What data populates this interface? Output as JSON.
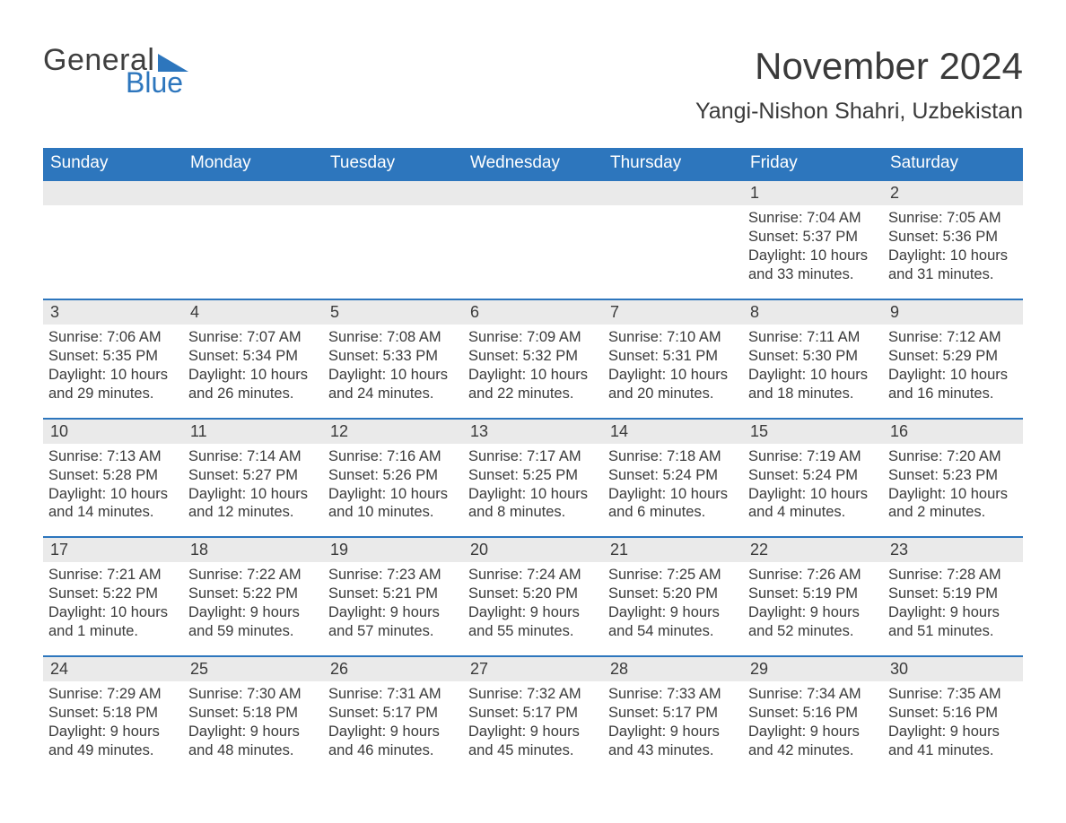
{
  "branding": {
    "word1": "General",
    "word2": "Blue",
    "logo_triangle_color": "#2d76bd",
    "text_color": "#3f3f3f",
    "blue_color": "#2d76bd"
  },
  "title": {
    "month": "November 2024",
    "location": "Yangi-Nishon Shahri, Uzbekistan"
  },
  "colors": {
    "header_bg": "#2d76bd",
    "header_text": "#ffffff",
    "daynum_bg": "#eaeaea",
    "body_text": "#3a3a3a",
    "page_bg": "#ffffff",
    "week_divider": "#2d76bd"
  },
  "typography": {
    "month_fontsize": 42,
    "location_fontsize": 25,
    "header_fontsize": 19,
    "daynum_fontsize": 18,
    "body_fontsize": 16.5
  },
  "day_headers": [
    "Sunday",
    "Monday",
    "Tuesday",
    "Wednesday",
    "Thursday",
    "Friday",
    "Saturday"
  ],
  "weeks": [
    [
      null,
      null,
      null,
      null,
      null,
      {
        "n": "1",
        "sunrise": "Sunrise: 7:04 AM",
        "sunset": "Sunset: 5:37 PM",
        "day": "Daylight: 10 hours and 33 minutes."
      },
      {
        "n": "2",
        "sunrise": "Sunrise: 7:05 AM",
        "sunset": "Sunset: 5:36 PM",
        "day": "Daylight: 10 hours and 31 minutes."
      }
    ],
    [
      {
        "n": "3",
        "sunrise": "Sunrise: 7:06 AM",
        "sunset": "Sunset: 5:35 PM",
        "day": "Daylight: 10 hours and 29 minutes."
      },
      {
        "n": "4",
        "sunrise": "Sunrise: 7:07 AM",
        "sunset": "Sunset: 5:34 PM",
        "day": "Daylight: 10 hours and 26 minutes."
      },
      {
        "n": "5",
        "sunrise": "Sunrise: 7:08 AM",
        "sunset": "Sunset: 5:33 PM",
        "day": "Daylight: 10 hours and 24 minutes."
      },
      {
        "n": "6",
        "sunrise": "Sunrise: 7:09 AM",
        "sunset": "Sunset: 5:32 PM",
        "day": "Daylight: 10 hours and 22 minutes."
      },
      {
        "n": "7",
        "sunrise": "Sunrise: 7:10 AM",
        "sunset": "Sunset: 5:31 PM",
        "day": "Daylight: 10 hours and 20 minutes."
      },
      {
        "n": "8",
        "sunrise": "Sunrise: 7:11 AM",
        "sunset": "Sunset: 5:30 PM",
        "day": "Daylight: 10 hours and 18 minutes."
      },
      {
        "n": "9",
        "sunrise": "Sunrise: 7:12 AM",
        "sunset": "Sunset: 5:29 PM",
        "day": "Daylight: 10 hours and 16 minutes."
      }
    ],
    [
      {
        "n": "10",
        "sunrise": "Sunrise: 7:13 AM",
        "sunset": "Sunset: 5:28 PM",
        "day": "Daylight: 10 hours and 14 minutes."
      },
      {
        "n": "11",
        "sunrise": "Sunrise: 7:14 AM",
        "sunset": "Sunset: 5:27 PM",
        "day": "Daylight: 10 hours and 12 minutes."
      },
      {
        "n": "12",
        "sunrise": "Sunrise: 7:16 AM",
        "sunset": "Sunset: 5:26 PM",
        "day": "Daylight: 10 hours and 10 minutes."
      },
      {
        "n": "13",
        "sunrise": "Sunrise: 7:17 AM",
        "sunset": "Sunset: 5:25 PM",
        "day": "Daylight: 10 hours and 8 minutes."
      },
      {
        "n": "14",
        "sunrise": "Sunrise: 7:18 AM",
        "sunset": "Sunset: 5:24 PM",
        "day": "Daylight: 10 hours and 6 minutes."
      },
      {
        "n": "15",
        "sunrise": "Sunrise: 7:19 AM",
        "sunset": "Sunset: 5:24 PM",
        "day": "Daylight: 10 hours and 4 minutes."
      },
      {
        "n": "16",
        "sunrise": "Sunrise: 7:20 AM",
        "sunset": "Sunset: 5:23 PM",
        "day": "Daylight: 10 hours and 2 minutes."
      }
    ],
    [
      {
        "n": "17",
        "sunrise": "Sunrise: 7:21 AM",
        "sunset": "Sunset: 5:22 PM",
        "day": "Daylight: 10 hours and 1 minute."
      },
      {
        "n": "18",
        "sunrise": "Sunrise: 7:22 AM",
        "sunset": "Sunset: 5:22 PM",
        "day": "Daylight: 9 hours and 59 minutes."
      },
      {
        "n": "19",
        "sunrise": "Sunrise: 7:23 AM",
        "sunset": "Sunset: 5:21 PM",
        "day": "Daylight: 9 hours and 57 minutes."
      },
      {
        "n": "20",
        "sunrise": "Sunrise: 7:24 AM",
        "sunset": "Sunset: 5:20 PM",
        "day": "Daylight: 9 hours and 55 minutes."
      },
      {
        "n": "21",
        "sunrise": "Sunrise: 7:25 AM",
        "sunset": "Sunset: 5:20 PM",
        "day": "Daylight: 9 hours and 54 minutes."
      },
      {
        "n": "22",
        "sunrise": "Sunrise: 7:26 AM",
        "sunset": "Sunset: 5:19 PM",
        "day": "Daylight: 9 hours and 52 minutes."
      },
      {
        "n": "23",
        "sunrise": "Sunrise: 7:28 AM",
        "sunset": "Sunset: 5:19 PM",
        "day": "Daylight: 9 hours and 51 minutes."
      }
    ],
    [
      {
        "n": "24",
        "sunrise": "Sunrise: 7:29 AM",
        "sunset": "Sunset: 5:18 PM",
        "day": "Daylight: 9 hours and 49 minutes."
      },
      {
        "n": "25",
        "sunrise": "Sunrise: 7:30 AM",
        "sunset": "Sunset: 5:18 PM",
        "day": "Daylight: 9 hours and 48 minutes."
      },
      {
        "n": "26",
        "sunrise": "Sunrise: 7:31 AM",
        "sunset": "Sunset: 5:17 PM",
        "day": "Daylight: 9 hours and 46 minutes."
      },
      {
        "n": "27",
        "sunrise": "Sunrise: 7:32 AM",
        "sunset": "Sunset: 5:17 PM",
        "day": "Daylight: 9 hours and 45 minutes."
      },
      {
        "n": "28",
        "sunrise": "Sunrise: 7:33 AM",
        "sunset": "Sunset: 5:17 PM",
        "day": "Daylight: 9 hours and 43 minutes."
      },
      {
        "n": "29",
        "sunrise": "Sunrise: 7:34 AM",
        "sunset": "Sunset: 5:16 PM",
        "day": "Daylight: 9 hours and 42 minutes."
      },
      {
        "n": "30",
        "sunrise": "Sunrise: 7:35 AM",
        "sunset": "Sunset: 5:16 PM",
        "day": "Daylight: 9 hours and 41 minutes."
      }
    ]
  ]
}
